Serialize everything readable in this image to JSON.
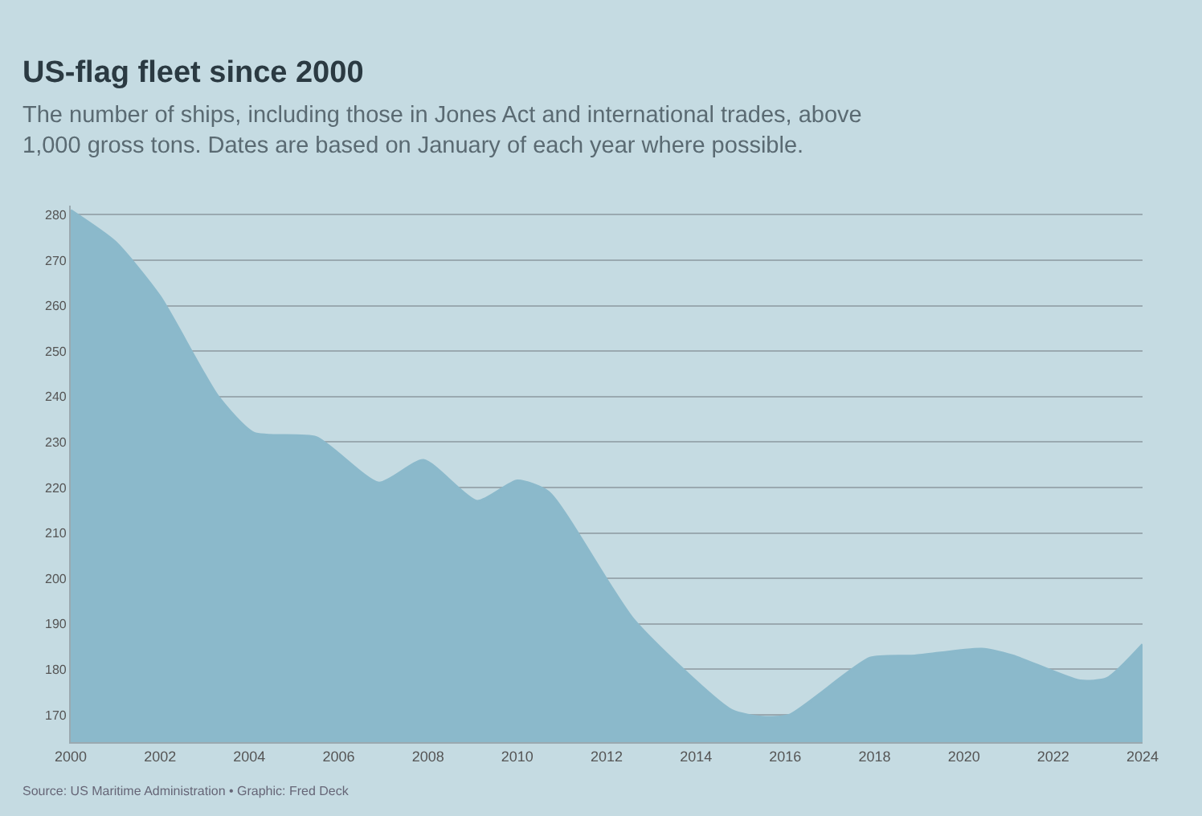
{
  "chart_data": {
    "type": "area",
    "title": "US-flag fleet since 2000",
    "subtitle": "The number of ships, including those in Jones Act and international trades, above 1,000 gross tons. Dates are based on January of each year where possible.",
    "annotations": [
      "Source: US Maritime Administration • Graphic: Fred Deck"
    ],
    "x": [
      2000,
      2001,
      2002,
      2003.3,
      2004.1,
      2005.5,
      2006.9,
      2007.9,
      2009.1,
      2010,
      2010.7,
      2012.6,
      2014.8,
      2015.5,
      2016.1,
      2017.9,
      2018.9,
      2020.4,
      2021.1,
      2022.6,
      2023.2,
      2024
    ],
    "series": [
      {
        "color": "#8bb9cb",
        "values": [
          281,
          274,
          262,
          240,
          232,
          231,
          221,
          226,
          217,
          221.5,
          219,
          191,
          171,
          169.5,
          170,
          182.5,
          183,
          184.5,
          183,
          177.5,
          178,
          185.5
        ]
      }
    ],
    "xlim": [
      2000,
      2024
    ],
    "xticks": [
      2000,
      2002,
      2004,
      2006,
      2008,
      2010,
      2012,
      2014,
      2016,
      2018,
      2020,
      2022,
      2024
    ],
    "ylim": [
      164,
      282
    ],
    "yticks": [
      170,
      180,
      190,
      200,
      210,
      220,
      230,
      240,
      250,
      260,
      270,
      280
    ],
    "grid": "y"
  }
}
